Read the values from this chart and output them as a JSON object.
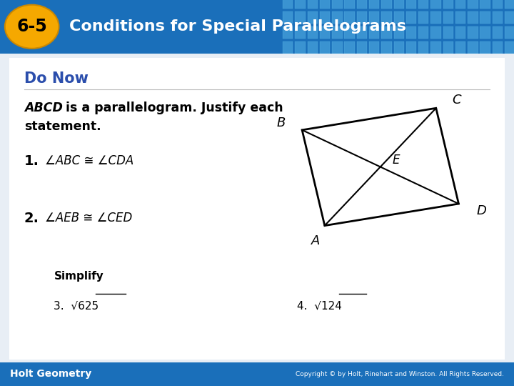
{
  "title_badge": "6-5",
  "title_text": "Conditions for Special Parallelograms",
  "header_bg_left": "#1a6fba",
  "header_bg_right": "#4aaee0",
  "header_text_color": "#FFFFFF",
  "badge_bg": "#F5A800",
  "badge_text_color": "#000000",
  "do_now_color": "#2B4EAC",
  "body_bg": "#e8eef5",
  "content_bg": "#FFFFFF",
  "content_border": "#CCCCCC",
  "do_now_label": "Do Now",
  "item1_text": "1.  ∠ABC ≅ ∠CDA",
  "item2_text": "2.  ∠AEB ≅ ∠CED",
  "simplify_label": "Simplify",
  "item3_val": "625",
  "item4_val": "124",
  "footer_left": "Holt Geometry",
  "footer_right": "Copyright © by Holt, Rinehart and Winston. All Rights Reserved.",
  "footer_bg": "#1a6fba",
  "A": [
    0.18,
    0.12
  ],
  "B": [
    0.05,
    0.82
  ],
  "C": [
    0.82,
    0.98
  ],
  "D": [
    0.95,
    0.28
  ]
}
